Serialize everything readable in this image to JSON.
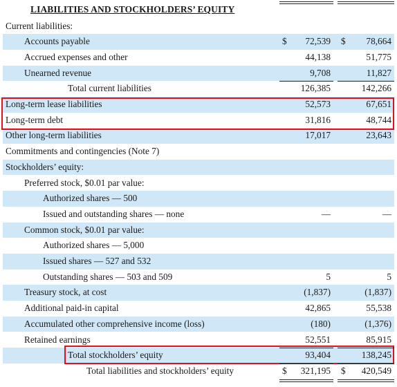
{
  "header": {
    "title": "LIABILITIES AND STOCKHOLDERS’ EQUITY"
  },
  "rows": [
    {
      "label": "Current liabilities:",
      "indent": 0,
      "v1": "",
      "v2": "",
      "shade": false
    },
    {
      "label": "Accounts payable",
      "indent": 1,
      "dollar": true,
      "v1": "72,539",
      "v2": "78,664",
      "shade": true
    },
    {
      "label": "Accrued expenses and other",
      "indent": 1,
      "v1": "44,138",
      "v2": "51,775",
      "shade": false
    },
    {
      "label": "Unearned revenue",
      "indent": 1,
      "v1": "9,708",
      "v2": "11,827",
      "shade": true
    },
    {
      "label": "Total current liabilities",
      "indent": 3,
      "v1": "126,385",
      "v2": "142,266",
      "shade": false
    },
    {
      "label": "Long-term lease liabilities",
      "indent": 0,
      "v1": "52,573",
      "v2": "67,651",
      "shade": true
    },
    {
      "label": "Long-term debt",
      "indent": 0,
      "v1": "31,816",
      "v2": "48,744",
      "shade": false
    },
    {
      "label": "Other long-term liabilities",
      "indent": 0,
      "v1": "17,017",
      "v2": "23,643",
      "shade": true
    },
    {
      "label": "Commitments and contingencies (Note 7)",
      "indent": 0,
      "v1": "",
      "v2": "",
      "shade": false
    },
    {
      "label": "Stockholders’ equity:",
      "indent": 0,
      "v1": "",
      "v2": "",
      "shade": true
    },
    {
      "label": "Preferred stock, $0.01 par value:",
      "indent": 1,
      "v1": "",
      "v2": "",
      "shade": false
    },
    {
      "label": "Authorized shares — 500",
      "indent": 2,
      "v1": "",
      "v2": "",
      "shade": true
    },
    {
      "label": "Issued and outstanding shares — none",
      "indent": 2,
      "v1": "—",
      "v2": "—",
      "shade": false
    },
    {
      "label": "Common stock, $0.01 par value:",
      "indent": 1,
      "v1": "",
      "v2": "",
      "shade": true
    },
    {
      "label": "Authorized shares — 5,000",
      "indent": 2,
      "v1": "",
      "v2": "",
      "shade": false
    },
    {
      "label": "Issued shares — 527 and 532",
      "indent": 2,
      "v1": "",
      "v2": "",
      "shade": true
    },
    {
      "label": "Outstanding shares — 503 and 509",
      "indent": 2,
      "v1": "5",
      "v2": "5",
      "shade": false
    },
    {
      "label": "Treasury stock, at cost",
      "indent": 1,
      "v1": "(1,837)",
      "v2": "(1,837)",
      "shade": true
    },
    {
      "label": "Additional paid-in capital",
      "indent": 1,
      "v1": "42,865",
      "v2": "55,538",
      "shade": false
    },
    {
      "label": "Accumulated other comprehensive income (loss)",
      "indent": 1,
      "v1": "(180)",
      "v2": "(1,376)",
      "shade": true
    },
    {
      "label": "Retained earnings",
      "indent": 1,
      "v1": "52,551",
      "v2": "85,915",
      "shade": false
    },
    {
      "label": "Total stockholders’ equity",
      "indent": 3,
      "v1": "93,404",
      "v2": "138,245",
      "shade": true
    },
    {
      "label": "Total liabilities and stockholders’ equity",
      "indent": 4,
      "dollar": true,
      "v1": "321,195",
      "v2": "420,549",
      "shade": false
    }
  ]
}
